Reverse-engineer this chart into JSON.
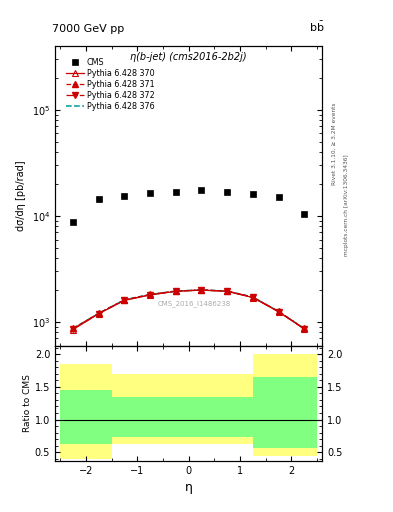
{
  "title_left": "7000 GeV pp",
  "title_right": "b$\\bar{\\text{b}}$",
  "plot_title": "η(b-jet) (cms2016-2b2j)",
  "xlabel": "η",
  "ylabel_main": "dσ/dη [pb/rad]",
  "ylabel_ratio": "Ratio to CMS",
  "watermark": "CMS_2016_I1486238",
  "right_label_top": "Rivet 3.1.10, ≥ 3.2M events",
  "right_label_bottom": "mcplots.cern.ch [arXiv:1306.3436]",
  "cms_data_x": [
    -2.25,
    -1.75,
    -1.25,
    -0.75,
    -0.25,
    0.25,
    0.75,
    1.25,
    1.75,
    2.25
  ],
  "cms_data_y": [
    8800,
    14500,
    15500,
    16500,
    17000,
    17500,
    17000,
    16000,
    15000,
    10500
  ],
  "p370_x": [
    -2.25,
    -1.75,
    -1.25,
    -0.75,
    -0.25,
    0.25,
    0.75,
    1.25,
    1.75,
    2.25
  ],
  "p370_y": [
    850,
    1200,
    1600,
    1800,
    1950,
    2000,
    1950,
    1700,
    1250,
    860
  ],
  "p370_color": "#cc0000",
  "p370_ls": "-",
  "p370_marker": "^",
  "p370_label": "Pythia 6.428 370",
  "p371_x": [
    -2.25,
    -1.75,
    -1.25,
    -0.75,
    -0.25,
    0.25,
    0.75,
    1.25,
    1.75,
    2.25
  ],
  "p371_y": [
    870,
    1210,
    1620,
    1820,
    1960,
    2010,
    1960,
    1720,
    1260,
    870
  ],
  "p371_color": "#cc0000",
  "p371_ls": "--",
  "p371_marker": "^",
  "p371_label": "Pythia 6.428 371",
  "p372_x": [
    -2.25,
    -1.75,
    -1.25,
    -0.75,
    -0.25,
    0.25,
    0.75,
    1.25,
    1.75,
    2.25
  ],
  "p372_y": [
    860,
    1200,
    1610,
    1810,
    1955,
    2005,
    1955,
    1710,
    1255,
    860
  ],
  "p372_color": "#cc0000",
  "p372_ls": "-.",
  "p372_marker": "v",
  "p372_label": "Pythia 6.428 372",
  "p376_x": [
    -2.25,
    -1.75,
    -1.25,
    -0.75,
    -0.25,
    0.25,
    0.75,
    1.25,
    1.75,
    2.25
  ],
  "p376_y": [
    870,
    1210,
    1620,
    1820,
    1960,
    2010,
    1960,
    1720,
    1260,
    870
  ],
  "p376_color": "#009999",
  "p376_ls": "--",
  "p376_label": "Pythia 6.428 376",
  "xlim": [
    -2.6,
    2.6
  ],
  "ylim_main": [
    600,
    400000
  ],
  "ylim_ratio": [
    0.37,
    2.13
  ],
  "ratio_yticks": [
    0.5,
    1.0,
    1.5,
    2.0
  ],
  "yellow_x": [
    -2.5,
    -1.5,
    -0.5,
    1.25,
    2.5
  ],
  "yellow_hi": [
    1.85,
    1.7,
    1.7,
    2.0,
    2.0
  ],
  "yellow_lo": [
    0.4,
    0.63,
    0.63,
    0.45,
    0.45
  ],
  "green_x": [
    -2.5,
    -1.5,
    -0.5,
    1.25,
    2.5
  ],
  "green_hi": [
    1.45,
    1.35,
    1.35,
    1.65,
    1.65
  ],
  "green_lo": [
    0.63,
    0.73,
    0.73,
    0.57,
    0.57
  ],
  "bg": "#ffffff"
}
